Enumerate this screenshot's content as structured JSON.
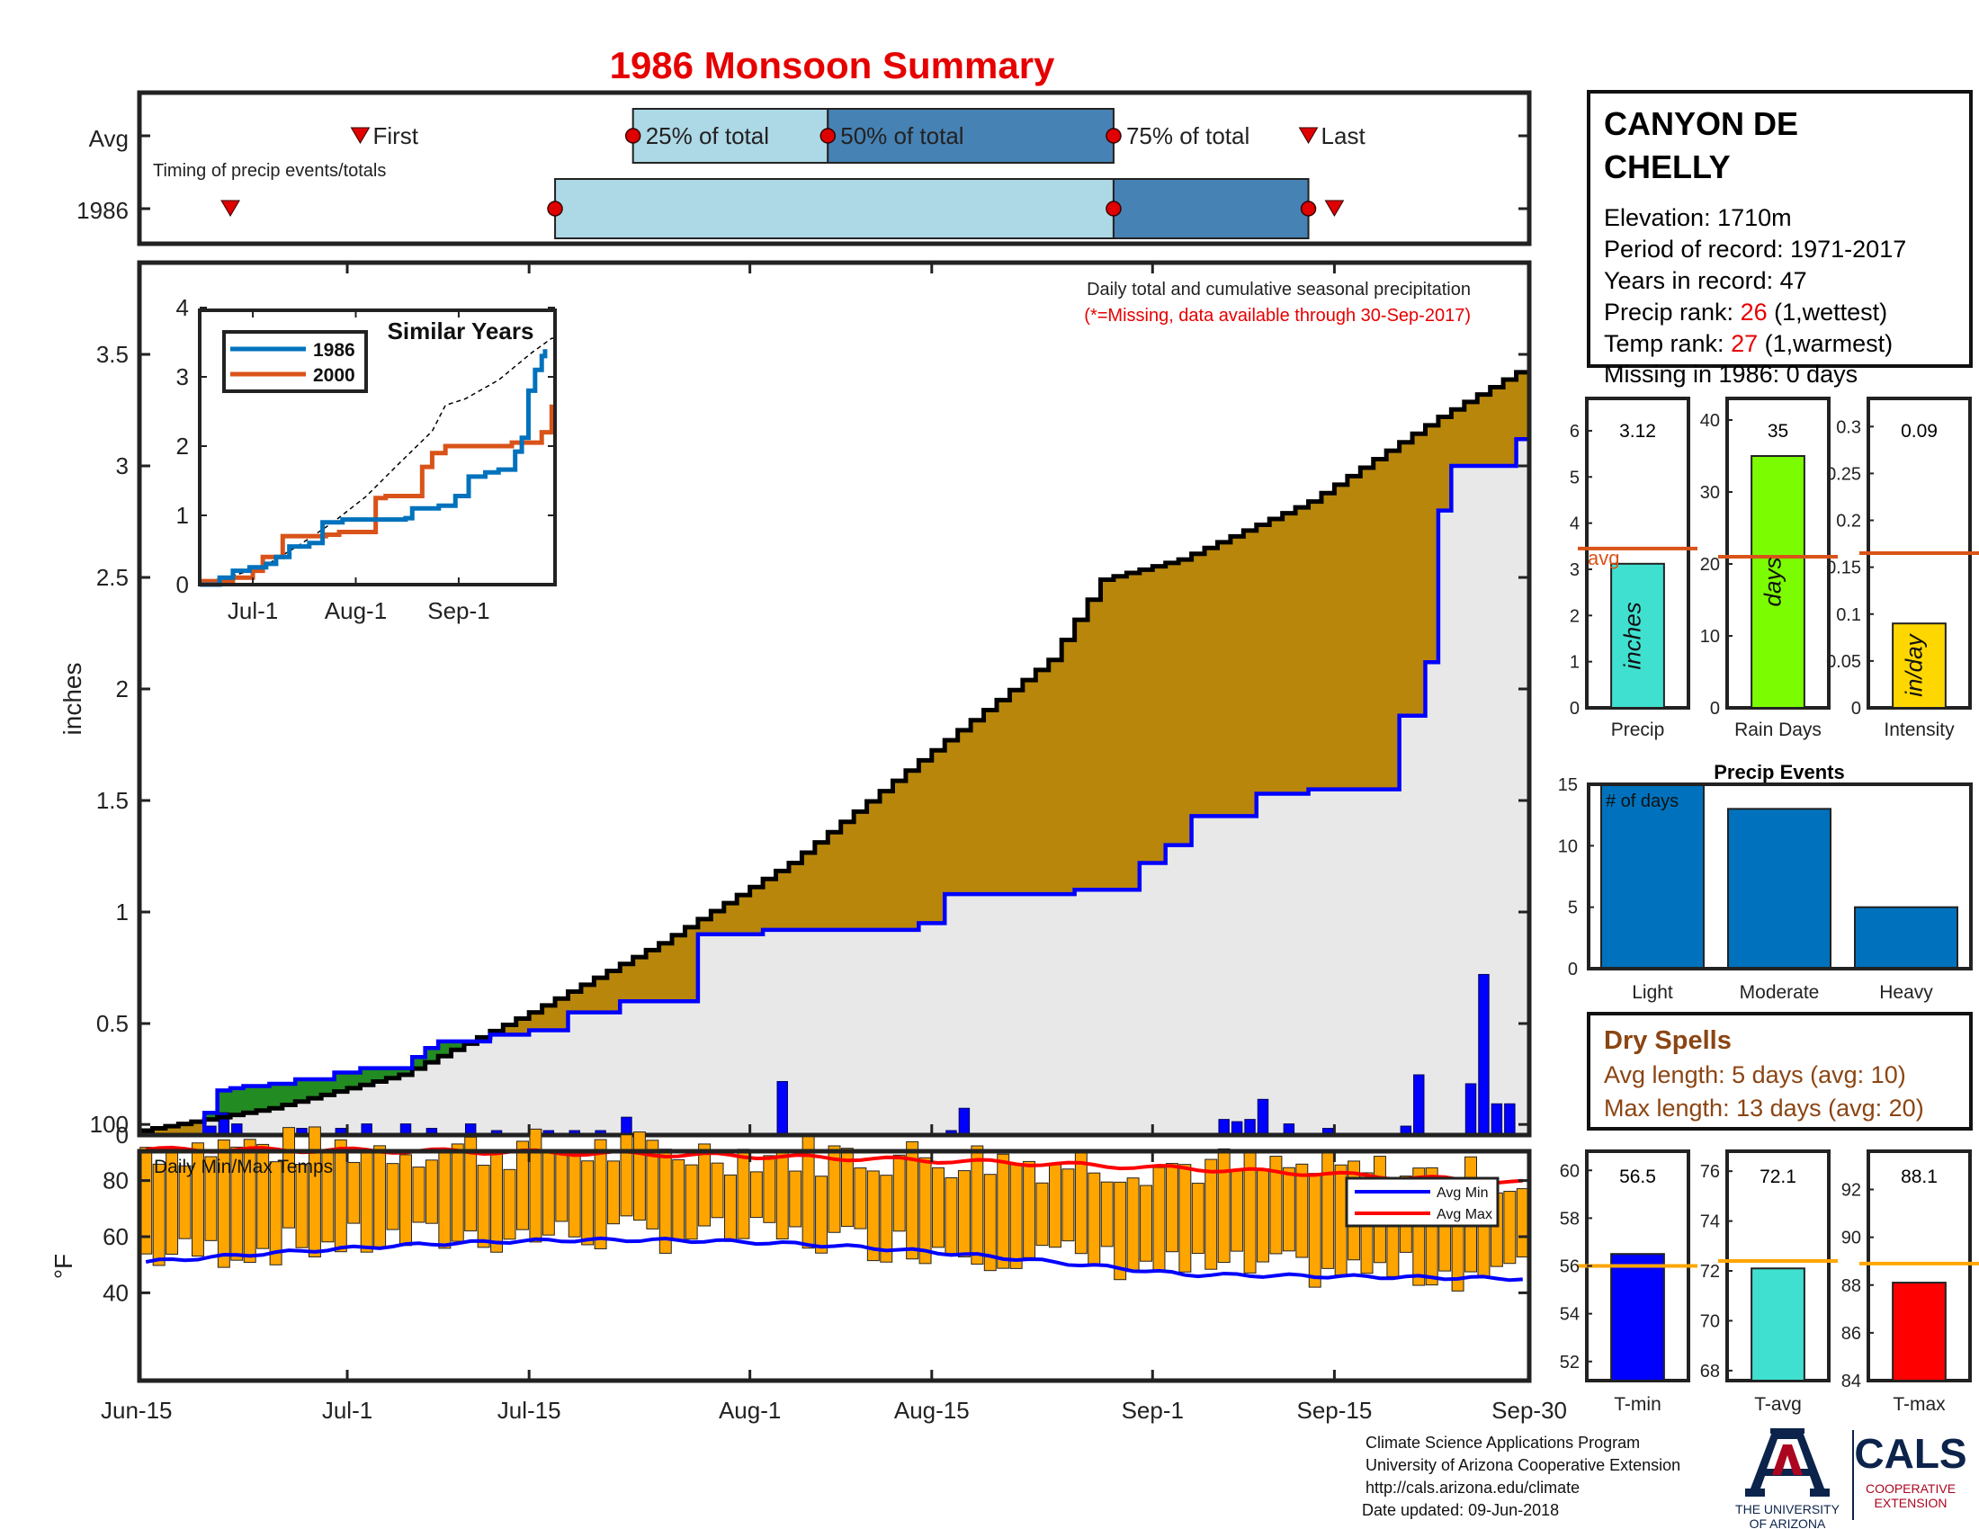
{
  "title": "1986 Monsoon Summary",
  "timing": {
    "row_labels": [
      "Avg",
      "1986"
    ],
    "note": "Timing of precip events/totals",
    "first_label": "First",
    "last_label": "Last",
    "pct_labels": [
      "25% of total",
      "50% of total",
      "75% of total"
    ],
    "avg": {
      "first": 17,
      "p25": 38,
      "p50": 53,
      "p75": 75,
      "last": 90
    },
    "year": {
      "first": 7,
      "p25": 32,
      "p50": 75,
      "p75": 90,
      "last": 92
    },
    "colors": {
      "light": "#add8e6",
      "dark": "#4682b4"
    }
  },
  "main": {
    "annotation": "Daily total and cumulative seasonal precipitation",
    "missing_note": "(*=Missing, data available through 30-Sep-2017)",
    "ylabel": "inches",
    "yticks": [
      "0",
      "0.5",
      "1",
      "1.5",
      "2",
      "2.5",
      "3",
      "3.5"
    ],
    "xticks": [
      "Jun-15",
      "Jul-1",
      "Jul-15",
      "Aug-1",
      "Aug-15",
      "Sep-1",
      "Sep-15",
      "Sep-30"
    ],
    "colors": {
      "above": "#228b22",
      "below": "#b8860b",
      "fill": "#e8e8e8",
      "year_line": "#0000ff",
      "avg_line": "#000000"
    }
  },
  "inset": {
    "title": "Similar Years",
    "legend": [
      "1986",
      "2000"
    ],
    "yticks": [
      "0",
      "1",
      "2",
      "3",
      "4"
    ],
    "xticks": [
      "Jul-1",
      "Aug-1",
      "Sep-1"
    ],
    "colors": [
      "#0072bd",
      "#d95319"
    ]
  },
  "station": {
    "name_line1": "CANYON DE",
    "name_line2": "CHELLY",
    "elevation": "Elevation: 1710m",
    "period": "Period of record: 1971-2017",
    "years": "Years in record: 47",
    "precip_rank_label": "Precip rank: ",
    "precip_rank": "26",
    "precip_rank_note": " (1,wettest)",
    "temp_rank_label": "Temp rank: ",
    "temp_rank": "27",
    "temp_rank_note": " (1,warmest)",
    "missing": "Missing in 1986: 0 days"
  },
  "stats": {
    "precip": {
      "value": 3.12,
      "label": "3.12",
      "avg": 3.45,
      "unit": "inches",
      "xlabel": "Precip",
      "yticks": [
        "0",
        "1",
        "2",
        "3",
        "4",
        "5",
        "6"
      ],
      "avg_label": "avg",
      "color": "#40e0d0"
    },
    "rain_days": {
      "value": 35,
      "label": "35",
      "avg": 21,
      "unit": "days",
      "xlabel": "Rain Days",
      "yticks": [
        "0",
        "10",
        "20",
        "30",
        "40"
      ],
      "color": "#7cfc00"
    },
    "intensity": {
      "value": 0.09,
      "label": "0.09",
      "avg": 0.165,
      "unit": "in/day",
      "xlabel": "Intensity",
      "yticks": [
        "0",
        "0.05",
        "0.1",
        "0.15",
        "0.2",
        "0.25",
        "0.3"
      ],
      "color": "#ffd700"
    }
  },
  "precip_events": {
    "title": "Precip Events",
    "inner_label": "# of days",
    "yticks": [
      "0",
      "5",
      "10",
      "15"
    ],
    "categories": [
      "Light",
      "Moderate",
      "Heavy"
    ],
    "values": [
      15,
      13,
      5
    ],
    "color": "#0072bd"
  },
  "dry_spells": {
    "title": "Dry Spells",
    "avg_length": "Avg length: 5 days (avg: 10)",
    "max_length": "Max length: 13 days (avg: 20)",
    "color": "#8b4513"
  },
  "temps": {
    "title": "Daily Min/Max Temps",
    "ylabel": "°F",
    "yticks": [
      "40",
      "60",
      "80",
      "100"
    ],
    "legend": [
      "Avg Min",
      "Avg Max"
    ],
    "bar_color": "#ffa500",
    "min_color": "#0000ff",
    "max_color": "#ff0000"
  },
  "temp_stats": {
    "tmin": {
      "value": 56.5,
      "label": "56.5",
      "avg": 56.0,
      "xlabel": "T-min",
      "yticks": [
        "52",
        "54",
        "56",
        "58",
        "60"
      ],
      "color": "#0000ff"
    },
    "tavg": {
      "value": 72.1,
      "label": "72.1",
      "avg": 72.4,
      "xlabel": "T-avg",
      "yticks": [
        "68",
        "70",
        "72",
        "74",
        "76"
      ],
      "color": "#40e0d0"
    },
    "tmax": {
      "value": 88.1,
      "label": "88.1",
      "avg": 88.9,
      "xlabel": "T-max",
      "yticks": [
        "84",
        "86",
        "88",
        "90",
        "92"
      ],
      "color": "#ff0000"
    },
    "avg_color": "#ffa500"
  },
  "footer": {
    "line1": "Climate Science Applications Program",
    "line2": "University of Arizona Cooperative Extension",
    "line3": "http://cals.arizona.edu/climate",
    "line4": " Date updated: 09-Jun-2018"
  },
  "logos": {
    "ua_line1": "THE UNIVERSITY",
    "ua_line2": "OF ARIZONA",
    "cals": "CALS",
    "cals_line1": "COOPERATIVE",
    "cals_line2": "EXTENSION",
    "ua_color": "#0c234b",
    "ua_red": "#ab0520"
  },
  "chart_data": {
    "type": "area",
    "title": "1986 Monsoon Summary",
    "xlabel": "",
    "ylabel": "inches",
    "x_range": [
      "Jun-15",
      "Sep-30"
    ],
    "ylim": [
      0,
      3.9
    ],
    "cumulative_1986": {
      "name": "1986",
      "x_day": [
        0,
        5,
        6,
        7,
        8,
        10,
        12,
        15,
        17,
        21,
        22,
        23,
        27,
        30,
        33,
        37,
        43,
        48,
        55,
        60,
        62,
        72,
        77,
        79,
        81,
        86,
        90,
        97,
        99,
        100,
        101,
        106
      ],
      "y": [
        0.0,
        0.1,
        0.2,
        0.21,
        0.22,
        0.23,
        0.25,
        0.28,
        0.3,
        0.35,
        0.39,
        0.42,
        0.45,
        0.47,
        0.55,
        0.6,
        0.9,
        0.92,
        0.92,
        0.95,
        1.08,
        1.1,
        1.22,
        1.3,
        1.43,
        1.53,
        1.55,
        1.88,
        2.12,
        2.8,
        3.0,
        3.12
      ]
    },
    "cumulative_avg": {
      "name": "Avg",
      "x_day": [
        0,
        10,
        20,
        30,
        40,
        50,
        60,
        70,
        74,
        80,
        90,
        100,
        106
      ],
      "y": [
        0.02,
        0.12,
        0.27,
        0.55,
        0.86,
        1.22,
        1.68,
        2.13,
        2.49,
        2.58,
        2.84,
        3.22,
        3.42
      ]
    },
    "daily_precip_1986": {
      "x_day": [
        5,
        6,
        7,
        12,
        15,
        17,
        20,
        22,
        25,
        27,
        30,
        31,
        33,
        35,
        37,
        49,
        62,
        63,
        83,
        84,
        85,
        86,
        88,
        91,
        97,
        98,
        102,
        103,
        104,
        105
      ],
      "y": [
        0.04,
        0.1,
        0.05,
        0.03,
        0.03,
        0.05,
        0.05,
        0.03,
        0.05,
        0.02,
        0.02,
        0.02,
        0.02,
        0.02,
        0.08,
        0.24,
        0.02,
        0.12,
        0.07,
        0.06,
        0.07,
        0.16,
        0.05,
        0.03,
        0.04,
        0.27,
        0.23,
        0.72,
        0.14,
        0.14
      ]
    },
    "temps_1986": {
      "avg_max_range": [
        91,
        79
      ],
      "avg_min_range": [
        51,
        44
      ]
    }
  }
}
